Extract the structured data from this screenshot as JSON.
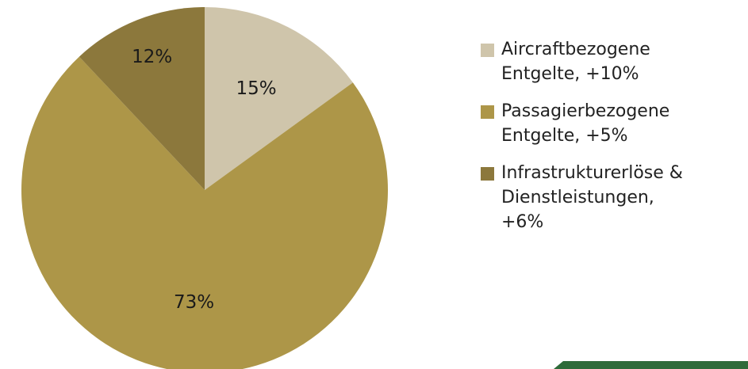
{
  "chart_data": {
    "type": "pie",
    "slices": [
      {
        "label": "Aircraftbezogene\nEntgelte, +10%",
        "value": 15,
        "display": "15%",
        "color": "#cfc5ab"
      },
      {
        "label": "Passagierbezogene\nEntgelte, +5%",
        "value": 73,
        "display": "73%",
        "color": "#ad9648"
      },
      {
        "label": "Infrastrukturerlöse &\nDienstleistungen,\n+6%",
        "value": 12,
        "display": "12%",
        "color": "#8c783c"
      }
    ],
    "start_angle_deg": 0,
    "direction": "clockwise",
    "legend_position": "right"
  },
  "accent_color": "#2e6b3a"
}
